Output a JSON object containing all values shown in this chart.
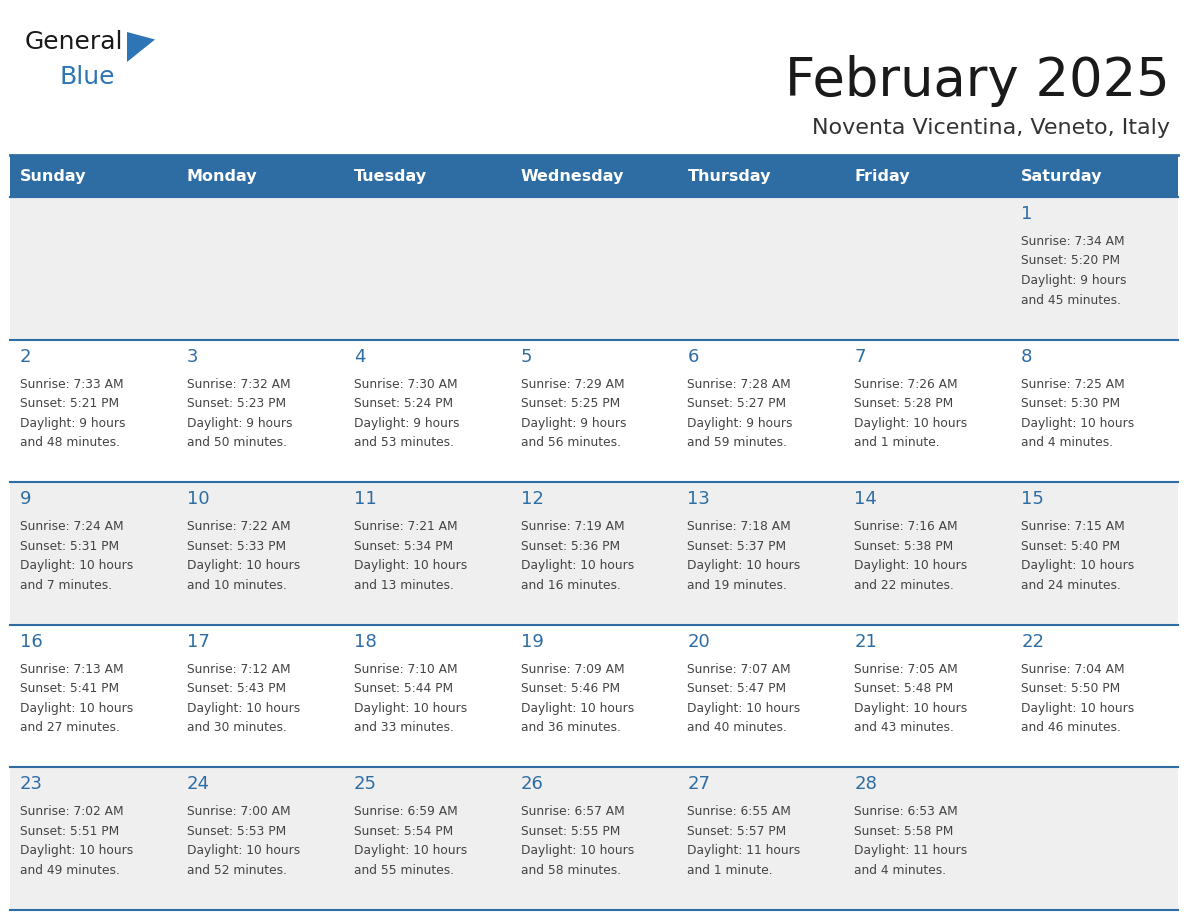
{
  "title": "February 2025",
  "subtitle": "Noventa Vicentina, Veneto, Italy",
  "header_bg": "#2E6DA4",
  "header_text_color": "#FFFFFF",
  "cell_bg_light": "#EFEFEF",
  "cell_bg_white": "#FFFFFF",
  "day_number_color": "#2E6DA4",
  "cell_text_color": "#444444",
  "grid_line_color": "#2E6DA4",
  "days_of_week": [
    "Sunday",
    "Monday",
    "Tuesday",
    "Wednesday",
    "Thursday",
    "Friday",
    "Saturday"
  ],
  "weeks": [
    [
      {
        "day": null,
        "info": ""
      },
      {
        "day": null,
        "info": ""
      },
      {
        "day": null,
        "info": ""
      },
      {
        "day": null,
        "info": ""
      },
      {
        "day": null,
        "info": ""
      },
      {
        "day": null,
        "info": ""
      },
      {
        "day": 1,
        "info": "Sunrise: 7:34 AM\nSunset: 5:20 PM\nDaylight: 9 hours\nand 45 minutes."
      }
    ],
    [
      {
        "day": 2,
        "info": "Sunrise: 7:33 AM\nSunset: 5:21 PM\nDaylight: 9 hours\nand 48 minutes."
      },
      {
        "day": 3,
        "info": "Sunrise: 7:32 AM\nSunset: 5:23 PM\nDaylight: 9 hours\nand 50 minutes."
      },
      {
        "day": 4,
        "info": "Sunrise: 7:30 AM\nSunset: 5:24 PM\nDaylight: 9 hours\nand 53 minutes."
      },
      {
        "day": 5,
        "info": "Sunrise: 7:29 AM\nSunset: 5:25 PM\nDaylight: 9 hours\nand 56 minutes."
      },
      {
        "day": 6,
        "info": "Sunrise: 7:28 AM\nSunset: 5:27 PM\nDaylight: 9 hours\nand 59 minutes."
      },
      {
        "day": 7,
        "info": "Sunrise: 7:26 AM\nSunset: 5:28 PM\nDaylight: 10 hours\nand 1 minute."
      },
      {
        "day": 8,
        "info": "Sunrise: 7:25 AM\nSunset: 5:30 PM\nDaylight: 10 hours\nand 4 minutes."
      }
    ],
    [
      {
        "day": 9,
        "info": "Sunrise: 7:24 AM\nSunset: 5:31 PM\nDaylight: 10 hours\nand 7 minutes."
      },
      {
        "day": 10,
        "info": "Sunrise: 7:22 AM\nSunset: 5:33 PM\nDaylight: 10 hours\nand 10 minutes."
      },
      {
        "day": 11,
        "info": "Sunrise: 7:21 AM\nSunset: 5:34 PM\nDaylight: 10 hours\nand 13 minutes."
      },
      {
        "day": 12,
        "info": "Sunrise: 7:19 AM\nSunset: 5:36 PM\nDaylight: 10 hours\nand 16 minutes."
      },
      {
        "day": 13,
        "info": "Sunrise: 7:18 AM\nSunset: 5:37 PM\nDaylight: 10 hours\nand 19 minutes."
      },
      {
        "day": 14,
        "info": "Sunrise: 7:16 AM\nSunset: 5:38 PM\nDaylight: 10 hours\nand 22 minutes."
      },
      {
        "day": 15,
        "info": "Sunrise: 7:15 AM\nSunset: 5:40 PM\nDaylight: 10 hours\nand 24 minutes."
      }
    ],
    [
      {
        "day": 16,
        "info": "Sunrise: 7:13 AM\nSunset: 5:41 PM\nDaylight: 10 hours\nand 27 minutes."
      },
      {
        "day": 17,
        "info": "Sunrise: 7:12 AM\nSunset: 5:43 PM\nDaylight: 10 hours\nand 30 minutes."
      },
      {
        "day": 18,
        "info": "Sunrise: 7:10 AM\nSunset: 5:44 PM\nDaylight: 10 hours\nand 33 minutes."
      },
      {
        "day": 19,
        "info": "Sunrise: 7:09 AM\nSunset: 5:46 PM\nDaylight: 10 hours\nand 36 minutes."
      },
      {
        "day": 20,
        "info": "Sunrise: 7:07 AM\nSunset: 5:47 PM\nDaylight: 10 hours\nand 40 minutes."
      },
      {
        "day": 21,
        "info": "Sunrise: 7:05 AM\nSunset: 5:48 PM\nDaylight: 10 hours\nand 43 minutes."
      },
      {
        "day": 22,
        "info": "Sunrise: 7:04 AM\nSunset: 5:50 PM\nDaylight: 10 hours\nand 46 minutes."
      }
    ],
    [
      {
        "day": 23,
        "info": "Sunrise: 7:02 AM\nSunset: 5:51 PM\nDaylight: 10 hours\nand 49 minutes."
      },
      {
        "day": 24,
        "info": "Sunrise: 7:00 AM\nSunset: 5:53 PM\nDaylight: 10 hours\nand 52 minutes."
      },
      {
        "day": 25,
        "info": "Sunrise: 6:59 AM\nSunset: 5:54 PM\nDaylight: 10 hours\nand 55 minutes."
      },
      {
        "day": 26,
        "info": "Sunrise: 6:57 AM\nSunset: 5:55 PM\nDaylight: 10 hours\nand 58 minutes."
      },
      {
        "day": 27,
        "info": "Sunrise: 6:55 AM\nSunset: 5:57 PM\nDaylight: 11 hours\nand 1 minute."
      },
      {
        "day": 28,
        "info": "Sunrise: 6:53 AM\nSunset: 5:58 PM\nDaylight: 11 hours\nand 4 minutes."
      },
      {
        "day": null,
        "info": ""
      }
    ]
  ]
}
